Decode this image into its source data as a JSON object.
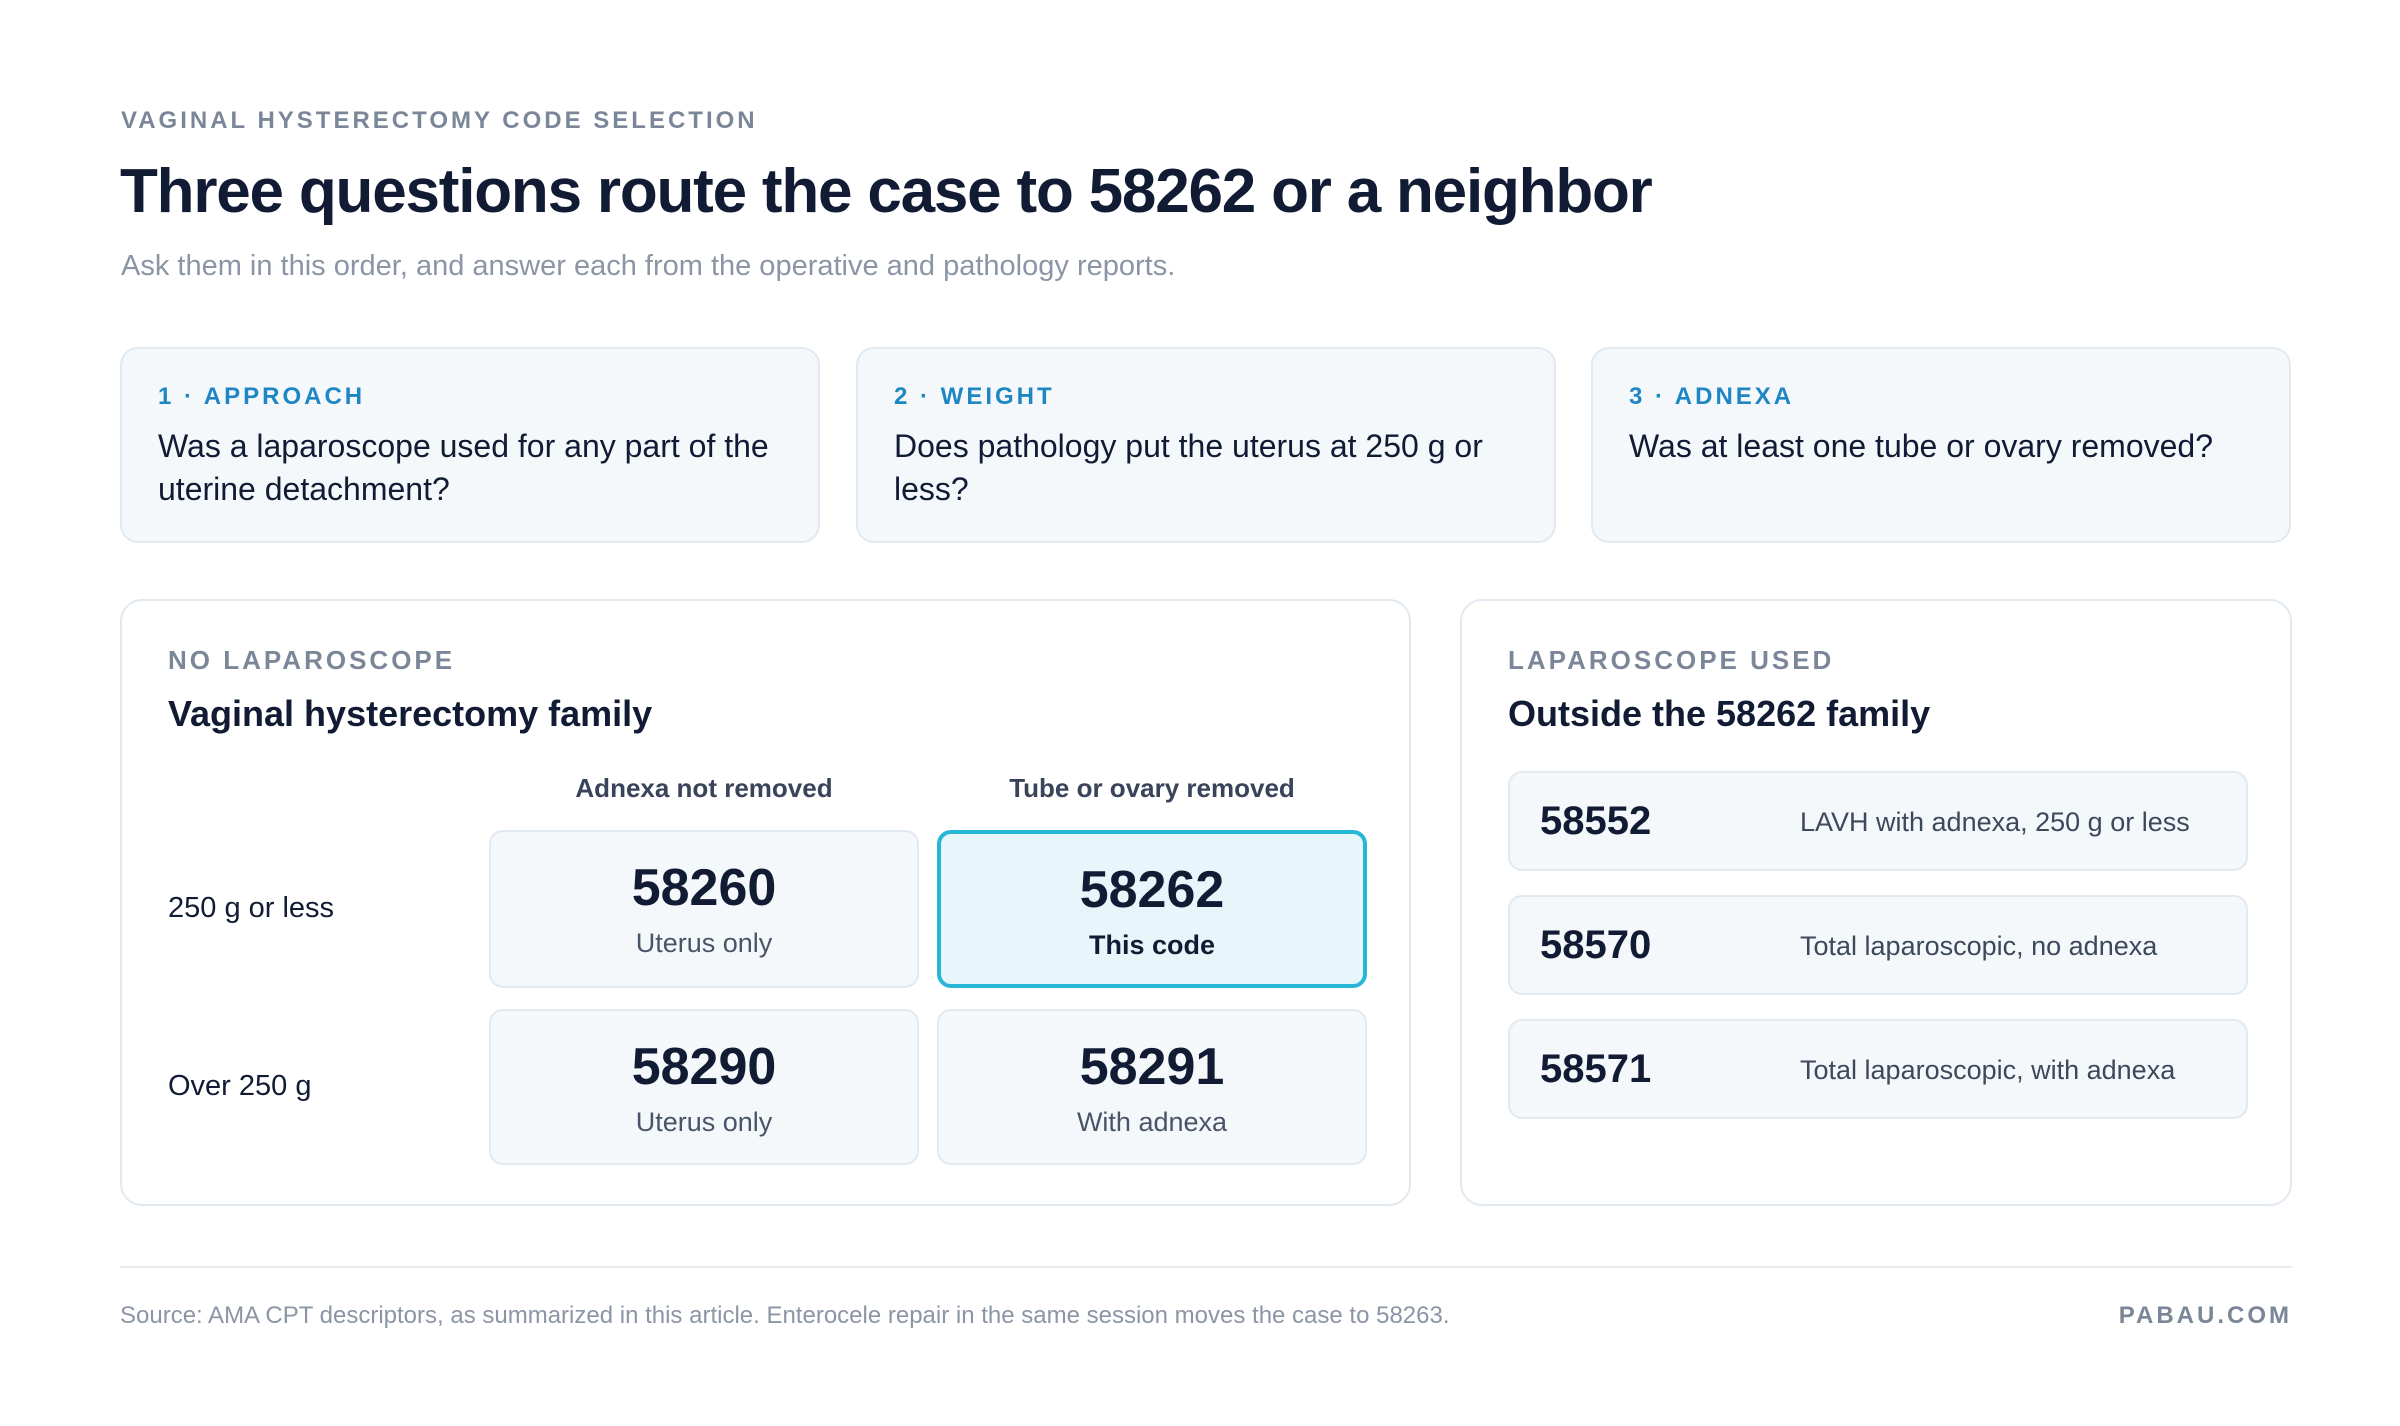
{
  "header": {
    "eyebrow": "VAGINAL HYSTERECTOMY CODE SELECTION",
    "title": "Three questions route the case to 58262 or a neighbor",
    "subtitle": "Ask them in this order, and answer each from the operative and pathology reports."
  },
  "questions": [
    {
      "label": "1 · APPROACH",
      "text": "Was a laparoscope used for any part of the uterine detachment?"
    },
    {
      "label": "2 · WEIGHT",
      "text": "Does pathology put the uterus at 250 g or less?"
    },
    {
      "label": "3 · ADNEXA",
      "text": "Was at least one tube or ovary removed?"
    }
  ],
  "left_panel": {
    "tag": "NO LAPAROSCOPE",
    "title": "Vaginal hysterectomy family",
    "columns": [
      "Adnexa not removed",
      "Tube or ovary removed"
    ],
    "rows": [
      {
        "label": "250 g or less",
        "cells": [
          {
            "code": "58260",
            "desc": "Uterus only"
          },
          {
            "code": "58262",
            "desc": "This code",
            "highlighted": true
          }
        ]
      },
      {
        "label": "Over 250 g",
        "cells": [
          {
            "code": "58290",
            "desc": "Uterus only"
          },
          {
            "code": "58291",
            "desc": "With adnexa"
          }
        ]
      }
    ]
  },
  "right_panel": {
    "tag": "LAPAROSCOPE USED",
    "title": "Outside the 58262 family",
    "items": [
      {
        "code": "58552",
        "desc": "LAVH with adnexa, 250 g or less"
      },
      {
        "code": "58570",
        "desc": "Total laparoscopic, no adnexa"
      },
      {
        "code": "58571",
        "desc": "Total laparoscopic, with adnexa"
      }
    ]
  },
  "footer": {
    "source": "Source: AMA CPT descriptors, as summarized in this article. Enterocele repair in the same session moves the case to 58263.",
    "brand": "PABAU.COM"
  },
  "colors": {
    "accent": "#1f86c4",
    "highlight_border": "#27b6d6",
    "highlight_fill": "#e6f6fb",
    "card_fill": "#f4f8fb"
  }
}
